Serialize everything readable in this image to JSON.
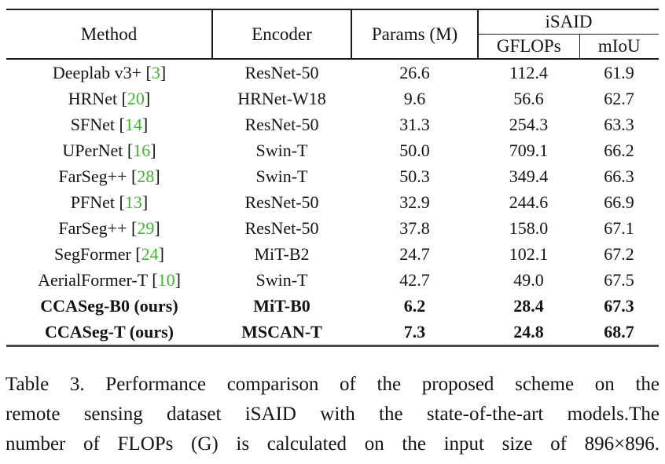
{
  "table": {
    "header": {
      "method": "Method",
      "encoder": "Encoder",
      "params": "Params (M)",
      "group": "iSAID",
      "sub": [
        "GFLOPs",
        "mIoU"
      ]
    },
    "rows": [
      {
        "method_name": "Deeplab v3+",
        "citation": "3",
        "encoder": "ResNet-50",
        "params": "26.6",
        "gflops": "112.4",
        "miou": "61.9",
        "bold": false
      },
      {
        "method_name": "HRNet",
        "citation": "20",
        "encoder": "HRNet-W18",
        "params": "9.6",
        "gflops": "56.6",
        "miou": "62.7",
        "bold": false
      },
      {
        "method_name": "SFNet",
        "citation": "14",
        "encoder": "ResNet-50",
        "params": "31.3",
        "gflops": "254.3",
        "miou": "63.3",
        "bold": false
      },
      {
        "method_name": "UPerNet",
        "citation": "16",
        "encoder": "Swin-T",
        "params": "50.0",
        "gflops": "709.1",
        "miou": "66.2",
        "bold": false
      },
      {
        "method_name": "FarSeg++",
        "citation": "28",
        "encoder": "Swin-T",
        "params": "50.3",
        "gflops": "349.4",
        "miou": "66.3",
        "bold": false
      },
      {
        "method_name": "PFNet",
        "citation": "13",
        "encoder": "ResNet-50",
        "params": "32.9",
        "gflops": "244.6",
        "miou": "66.9",
        "bold": false
      },
      {
        "method_name": "FarSeg++",
        "citation": "29",
        "encoder": "ResNet-50",
        "params": "37.8",
        "gflops": "158.0",
        "miou": "67.1",
        "bold": false
      },
      {
        "method_name": "SegFormer",
        "citation": "24",
        "encoder": "MiT-B2",
        "params": "24.7",
        "gflops": "102.1",
        "miou": "67.2",
        "bold": false
      },
      {
        "method_name": "AerialFormer-T",
        "citation": "10",
        "encoder": "Swin-T",
        "params": "42.7",
        "gflops": "49.0",
        "miou": "67.5",
        "bold": false
      },
      {
        "method_name": "CCASeg-B0 (ours)",
        "citation": null,
        "encoder": "MiT-B0",
        "params": "6.2",
        "gflops": "28.4",
        "miou": "67.3",
        "bold": true
      },
      {
        "method_name": "CCASeg-T (ours)",
        "citation": null,
        "encoder": "MSCAN-T",
        "params": "7.3",
        "gflops": "24.8",
        "miou": "68.7",
        "bold": true
      }
    ]
  },
  "caption": {
    "lines": [
      "Table 3. Performance comparison of the proposed scheme on the",
      "remote sensing dataset iSAID with the state-of-the-art models.The",
      "number of FLOPs (G) is calculated on the input size of 896×896."
    ]
  },
  "colors": {
    "citation_green": "#3CB42D",
    "text": "#141414"
  }
}
